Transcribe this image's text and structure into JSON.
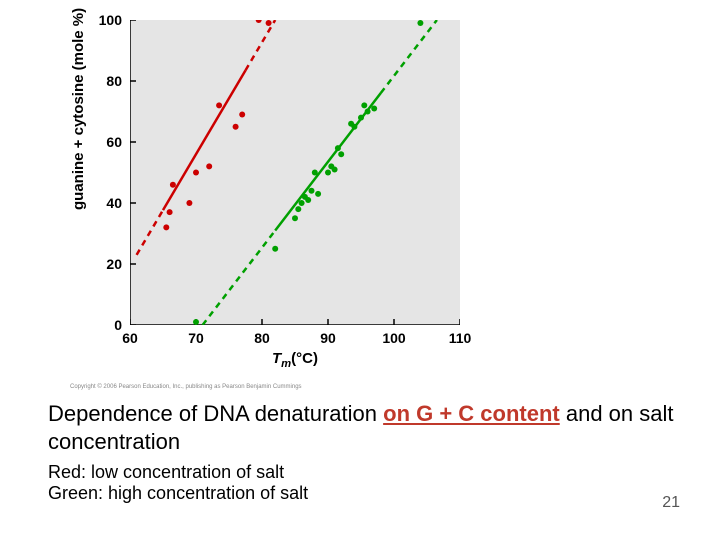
{
  "chart": {
    "type": "scatter",
    "background_color": "#e5e5e5",
    "plot_area_color": "#e5e5e5",
    "axis_color": "#000000",
    "xlim": [
      60,
      110
    ],
    "ylim": [
      0,
      100
    ],
    "xtick_values": [
      60,
      70,
      80,
      90,
      100,
      110
    ],
    "ytick_values": [
      0,
      20,
      40,
      60,
      80,
      100
    ],
    "xtick_labels": [
      "60",
      "70",
      "80",
      "90",
      "100",
      "110"
    ],
    "ytick_labels": [
      "0",
      "20",
      "40",
      "60",
      "80",
      "100"
    ],
    "xlabel_prefix": "T",
    "xlabel_sub": "m",
    "xlabel_suffix": "(°C)",
    "ylabel": "guanine + cytosine (mole %)",
    "label_fontsize": 15,
    "tick_len": 6,
    "grid": false,
    "marker_radius": 3,
    "series_red": {
      "color": "#cc0000",
      "points": [
        {
          "x": 65.5,
          "y": 32
        },
        {
          "x": 66.0,
          "y": 37
        },
        {
          "x": 66.5,
          "y": 46
        },
        {
          "x": 69.0,
          "y": 40
        },
        {
          "x": 70.0,
          "y": 50
        },
        {
          "x": 72.0,
          "y": 52
        },
        {
          "x": 73.5,
          "y": 72
        },
        {
          "x": 76.0,
          "y": 65
        },
        {
          "x": 77.0,
          "y": 69
        },
        {
          "x": 79.5,
          "y": 100
        },
        {
          "x": 81.0,
          "y": 99
        }
      ],
      "line": {
        "x1": 61.0,
        "y1": 23,
        "x2": 82.0,
        "y2": 100,
        "width": 2.5,
        "solid_from_x": 65.0,
        "solid_to_x": 77.5,
        "dash": "6,5"
      }
    },
    "series_green": {
      "color": "#00a000",
      "points": [
        {
          "x": 70.0,
          "y": 1
        },
        {
          "x": 82.0,
          "y": 25
        },
        {
          "x": 85.0,
          "y": 35
        },
        {
          "x": 85.5,
          "y": 38
        },
        {
          "x": 86.0,
          "y": 40
        },
        {
          "x": 86.5,
          "y": 42
        },
        {
          "x": 87.0,
          "y": 41
        },
        {
          "x": 87.5,
          "y": 44
        },
        {
          "x": 88.5,
          "y": 43
        },
        {
          "x": 88.0,
          "y": 50
        },
        {
          "x": 90.0,
          "y": 50
        },
        {
          "x": 90.5,
          "y": 52
        },
        {
          "x": 91.0,
          "y": 51
        },
        {
          "x": 91.5,
          "y": 58
        },
        {
          "x": 92.0,
          "y": 56
        },
        {
          "x": 93.5,
          "y": 66
        },
        {
          "x": 94.0,
          "y": 65
        },
        {
          "x": 95.0,
          "y": 68
        },
        {
          "x": 95.5,
          "y": 72
        },
        {
          "x": 96.0,
          "y": 70
        },
        {
          "x": 97.0,
          "y": 71
        },
        {
          "x": 104.0,
          "y": 99
        }
      ],
      "line": {
        "x1": 71.0,
        "y1": 0,
        "x2": 106.5,
        "y2": 100,
        "width": 2.5,
        "solid_from_x": 82.0,
        "solid_to_x": 98.0,
        "dash": "6,5"
      }
    }
  },
  "caption": {
    "prefix": "Dependence of DNA denaturation ",
    "highlight": "on G + C content",
    "highlight_color": "#c0392b",
    "suffix": " and on salt concentration"
  },
  "legend": {
    "red_label": "Red: low concentration of salt",
    "green_label": "Green: high concentration of salt"
  },
  "page_number": "21",
  "copyright": "Copyright © 2006 Pearson Education, Inc., publishing as Pearson Benjamin Cummings"
}
